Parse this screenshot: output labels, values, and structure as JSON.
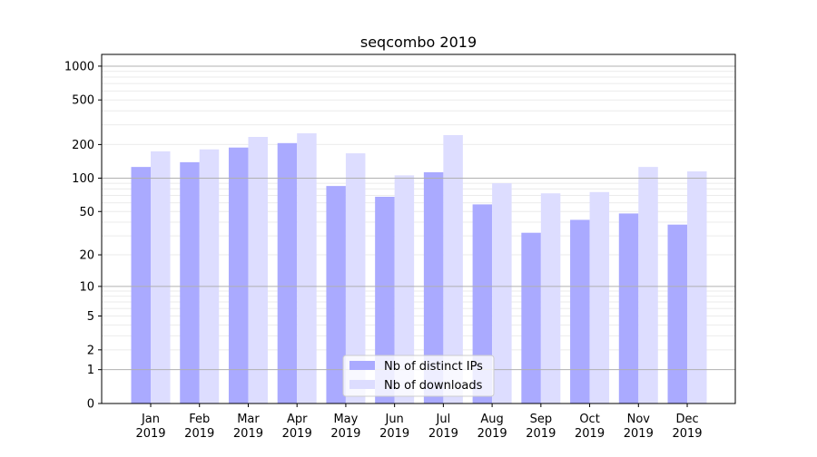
{
  "chart_data": {
    "type": "bar",
    "title": "seqcombo 2019",
    "xlabel": "",
    "ylabel": "",
    "y_scale": "log(1+y)",
    "ylim": [
      0,
      1200
    ],
    "yticks": [
      0,
      1,
      2,
      5,
      10,
      20,
      50,
      100,
      200,
      500,
      1000
    ],
    "grid": true,
    "legend_position": "lower center",
    "categories": [
      "Jan\n2019",
      "Feb\n2019",
      "Mar\n2019",
      "Apr\n2019",
      "May\n2019",
      "Jun\n2019",
      "Jul\n2019",
      "Aug\n2019",
      "Sep\n2019",
      "Oct\n2019",
      "Nov\n2019",
      "Dec\n2019"
    ],
    "series": [
      {
        "name": "Nb of distinct IPs",
        "color": "#aaaaff",
        "values": [
          126,
          139,
          188,
          206,
          85,
          68,
          113,
          58,
          32,
          42,
          48,
          38
        ]
      },
      {
        "name": "Nb of downloads",
        "color": "#ddddff",
        "values": [
          174,
          181,
          234,
          252,
          167,
          106,
          243,
          90,
          73,
          75,
          126,
          115
        ]
      }
    ]
  }
}
